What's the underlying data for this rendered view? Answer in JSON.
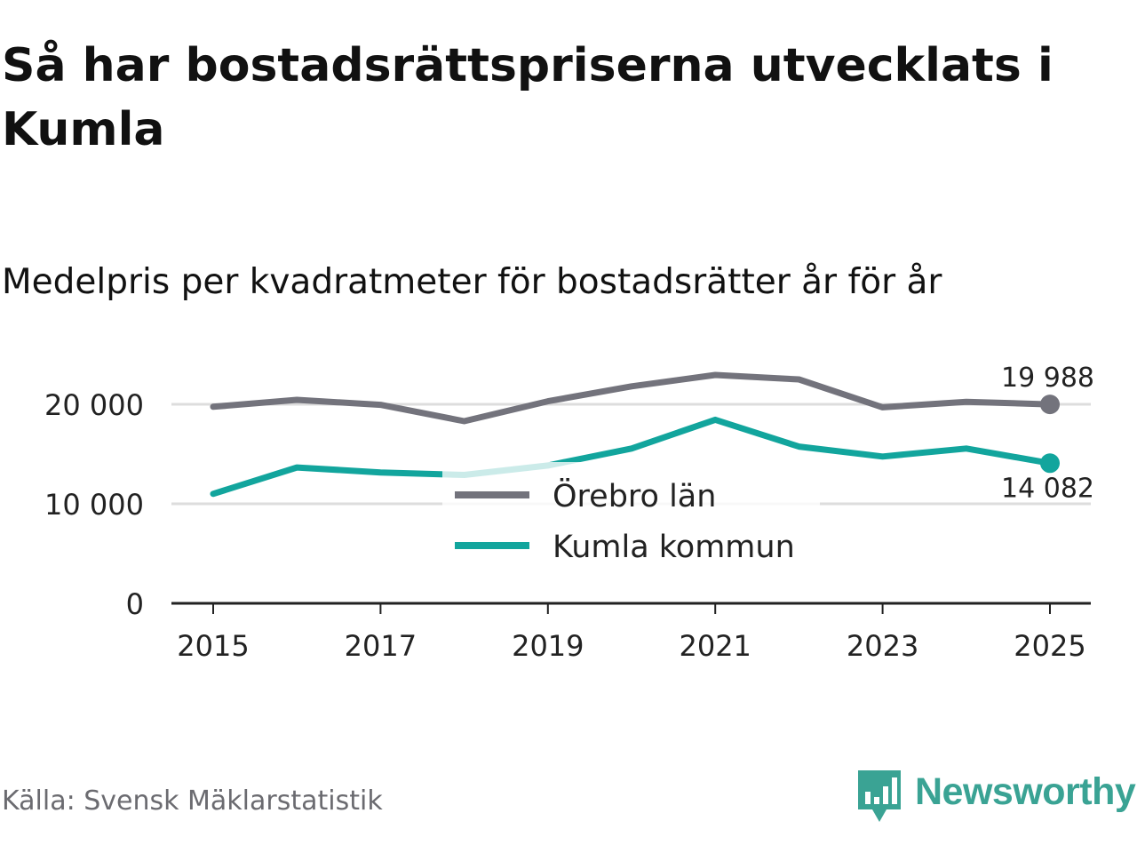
{
  "header": {
    "title": "Så har bostadsrättspriserna utvecklats i Kumla",
    "subtitle": "Medelpris per kvadratmeter för bostadsrätter år för år"
  },
  "footer": {
    "source": "Källa: Svensk Mäklarstatistik",
    "brand": "Newsworthy",
    "brand_icon": "bar-chart-icon"
  },
  "colors": {
    "orebro": "#73737c",
    "kumla": "#12a59d",
    "grid": "#dddddd",
    "axis": "#222222",
    "brand": "#3aa394"
  },
  "chart_data": {
    "type": "line",
    "title": "Medelpris per kvadratmeter för bostadsrätter år för år",
    "xlabel": "",
    "ylabel": "",
    "ylim": [
      0,
      25000
    ],
    "xlim": [
      2015,
      2025
    ],
    "grid": true,
    "legend_position": "center",
    "x": [
      2015,
      2016,
      2017,
      2018,
      2019,
      2020,
      2021,
      2022,
      2023,
      2024,
      2025
    ],
    "xtick_labels": [
      "2015",
      "2017",
      "2019",
      "2021",
      "2023",
      "2025"
    ],
    "ytick_labels": [
      "0",
      "10 000",
      "20 000"
    ],
    "yticks": [
      0,
      10000,
      20000
    ],
    "series": [
      {
        "name": "Örebro län",
        "key": "orebro",
        "values": [
          19750,
          20450,
          19950,
          18300,
          20300,
          21800,
          22950,
          22500,
          19700,
          20250,
          19988
        ],
        "end_label": "19 988"
      },
      {
        "name": "Kumla kommun",
        "key": "kumla",
        "values": [
          11000,
          13650,
          13150,
          12900,
          13850,
          15550,
          18450,
          15750,
          14750,
          15550,
          14082
        ],
        "end_label": "14 082"
      }
    ]
  }
}
